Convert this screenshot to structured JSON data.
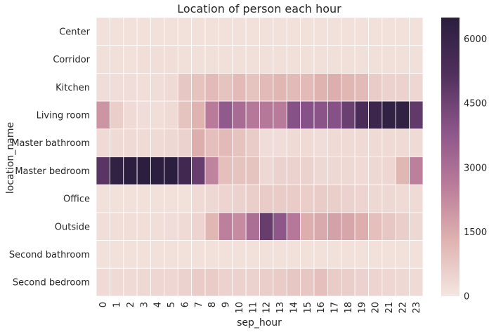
{
  "chart_data": {
    "type": "heatmap",
    "title": "Location of person each hour",
    "xlabel": "sep_hour",
    "ylabel": "location_name",
    "x": [
      "0",
      "1",
      "2",
      "3",
      "4",
      "5",
      "6",
      "7",
      "8",
      "9",
      "10",
      "11",
      "12",
      "13",
      "14",
      "15",
      "16",
      "17",
      "18",
      "19",
      "20",
      "21",
      "22",
      "23"
    ],
    "y": [
      "Center",
      "Corridor",
      "Kitchen",
      "Living room",
      "Master bathroom",
      "Master bedroom",
      "Office",
      "Outside",
      "Second bathroom",
      "Second bedroom"
    ],
    "values": [
      [
        150,
        150,
        150,
        150,
        150,
        150,
        150,
        150,
        150,
        150,
        150,
        150,
        150,
        150,
        150,
        150,
        150,
        150,
        150,
        150,
        150,
        150,
        150,
        150
      ],
      [
        180,
        180,
        150,
        200,
        200,
        200,
        180,
        180,
        180,
        180,
        180,
        180,
        180,
        180,
        180,
        180,
        180,
        180,
        180,
        180,
        180,
        180,
        180,
        180
      ],
      [
        250,
        250,
        220,
        200,
        250,
        300,
        800,
        900,
        1100,
        900,
        1100,
        900,
        1100,
        1200,
        1100,
        1100,
        1300,
        1400,
        1200,
        1100,
        700,
        500,
        500,
        400
      ],
      [
        2000,
        600,
        300,
        250,
        200,
        300,
        900,
        1300,
        2600,
        3700,
        3100,
        2700,
        2700,
        2600,
        4000,
        4000,
        3900,
        4000,
        4600,
        5400,
        5900,
        6300,
        6300,
        4800
      ],
      [
        300,
        300,
        300,
        300,
        300,
        350,
        500,
        1400,
        1000,
        1100,
        900,
        700,
        250,
        250,
        300,
        300,
        250,
        300,
        300,
        300,
        300,
        300,
        300,
        300
      ],
      [
        5000,
        6300,
        6500,
        6500,
        6500,
        6500,
        5700,
        4700,
        2400,
        1000,
        900,
        900,
        350,
        500,
        500,
        500,
        350,
        350,
        350,
        300,
        350,
        400,
        1200,
        2500
      ],
      [
        150,
        150,
        150,
        150,
        150,
        150,
        150,
        300,
        350,
        450,
        500,
        600,
        700,
        700,
        700,
        600,
        700,
        600,
        500,
        450,
        350,
        350,
        300,
        300
      ],
      [
        200,
        200,
        200,
        200,
        200,
        250,
        300,
        450,
        1200,
        2500,
        2200,
        3000,
        4700,
        3800,
        2700,
        1400,
        1500,
        1700,
        1600,
        1400,
        1000,
        800,
        600,
        350
      ],
      [
        150,
        150,
        150,
        150,
        150,
        150,
        150,
        150,
        150,
        150,
        150,
        150,
        150,
        150,
        150,
        150,
        150,
        150,
        150,
        150,
        150,
        150,
        150,
        150
      ],
      [
        300,
        300,
        300,
        350,
        400,
        400,
        500,
        700,
        700,
        500,
        500,
        500,
        600,
        700,
        800,
        800,
        1000,
        700,
        600,
        500,
        450,
        400,
        350,
        300
      ]
    ],
    "vmin": 0,
    "vmax": 6500,
    "colorbar_ticks": [
      0,
      1500,
      3000,
      4500,
      6000
    ],
    "colorbar_tick_labels": [
      "0",
      "1500",
      "3000",
      "4500",
      "6000"
    ],
    "colormap": [
      "#f4e6e1",
      "#dfb3b0",
      "#b97b9a",
      "#8a5489",
      "#4f2f5c",
      "#2b1e3e"
    ]
  }
}
